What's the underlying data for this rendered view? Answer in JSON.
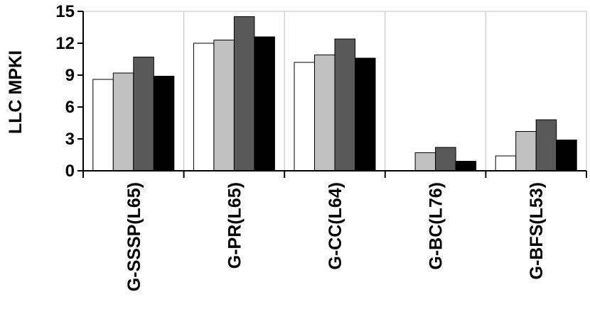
{
  "chart_data": {
    "type": "bar",
    "title": "",
    "xlabel": "",
    "ylabel": "LLC MPKI",
    "ylim": [
      0,
      15
    ],
    "yticks": [
      0,
      3,
      6,
      9,
      12,
      15
    ],
    "grid": "vertical category dividers",
    "legend": "none",
    "categories": [
      "G-SSSP(L65)",
      "G-PR(L65)",
      "G-CC(L64)",
      "G-BC(L76)",
      "G-BFS(L53)"
    ],
    "series": [
      {
        "color": "#ffffff",
        "values": [
          8.6,
          12.0,
          10.2,
          0.0,
          1.4
        ]
      },
      {
        "color": "#c0c0c0",
        "values": [
          9.2,
          12.3,
          10.9,
          1.7,
          3.7
        ]
      },
      {
        "color": "#595959",
        "values": [
          10.7,
          14.5,
          12.4,
          2.2,
          4.8
        ]
      },
      {
        "color": "#000000",
        "values": [
          8.9,
          12.6,
          10.6,
          0.9,
          2.9
        ]
      }
    ]
  }
}
